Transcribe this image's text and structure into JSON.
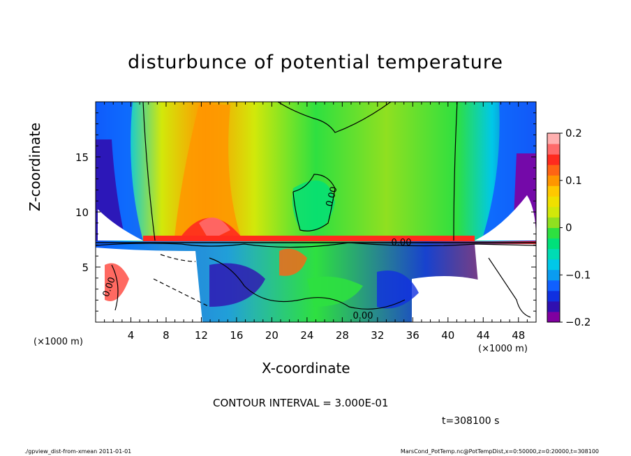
{
  "figure": {
    "title": "disturbunce of potential temperature",
    "contour_interval": "CONTOUR INTERVAL = 3.000E-01",
    "time_label": "t=308100 s",
    "footer_left": "./gpview_dist-from-xmean   2011-01-01",
    "footer_right": "MarsCond_PotTemp.nc@PotTempDist,x=0:50000,z=0:20000,t=308100"
  },
  "chart_data": {
    "type": "heatmap",
    "title": "disturbunce of potential temperature",
    "xlabel": "X-coordinate",
    "ylabel": "Z-coordinate",
    "x_unit_label": "(×1000 m)",
    "x_unit_label_right": "(×1000 m)",
    "x_range": [
      0,
      50
    ],
    "y_range": [
      0,
      20
    ],
    "x_ticks": [
      4,
      8,
      12,
      16,
      20,
      24,
      28,
      32,
      36,
      40,
      44,
      48
    ],
    "y_ticks": [
      5,
      10,
      15
    ],
    "colorbar": {
      "range": [
        -0.2,
        0.2
      ],
      "ticks": [
        0.2,
        0.1,
        0,
        -0.1,
        -0.2
      ],
      "tick_labels": [
        "0.2",
        "0.1",
        "0",
        "−0.1",
        "−0.2"
      ],
      "colors": [
        "#8000a0",
        "#3010b0",
        "#1030e0",
        "#1060ff",
        "#0a9cf0",
        "#00c8e8",
        "#00dcb4",
        "#00e07a",
        "#2ee040",
        "#90e020",
        "#d2e80a",
        "#f0e000",
        "#ffc800",
        "#ff9600",
        "#ff6414",
        "#ff2a1e",
        "#ff6a6a",
        "#ffb0b0"
      ]
    },
    "contour_labels": [
      "0.00",
      "0.00",
      "0.00",
      "0.00"
    ],
    "contour_interval": 0.3,
    "time_s": 308100
  }
}
